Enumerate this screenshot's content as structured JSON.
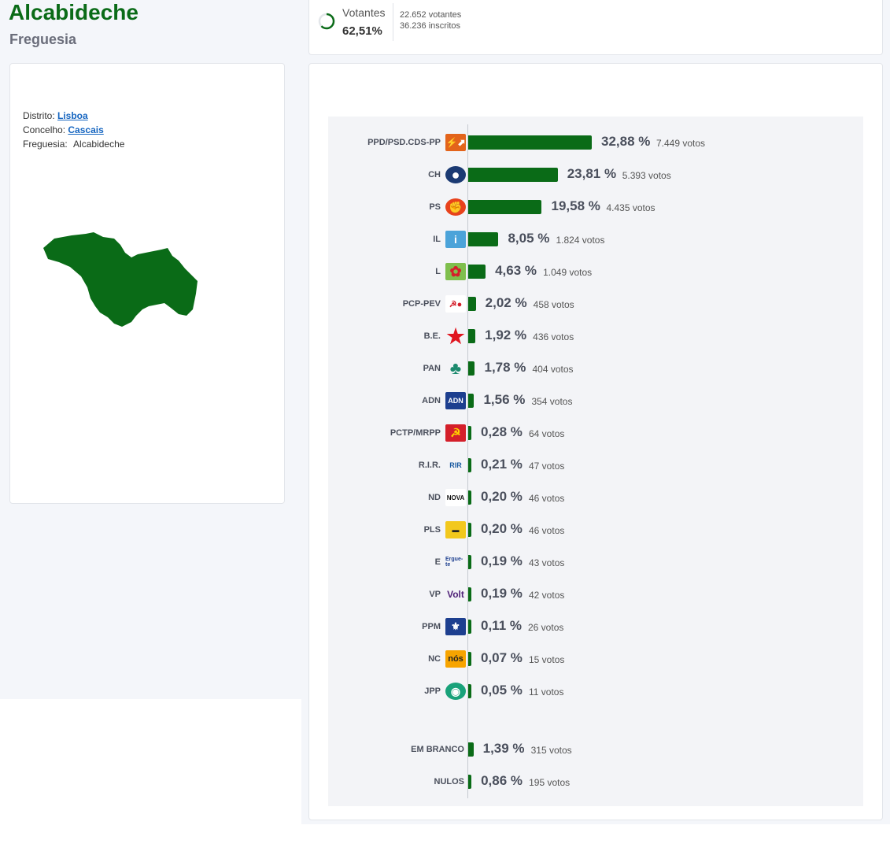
{
  "header": {
    "title": "Alcabideche",
    "subtitle": "Freguesia"
  },
  "turnout": {
    "label": "Votantes",
    "percent": "62,51%",
    "percent_value": 62.51,
    "voters": "22.652 votantes",
    "registered": "36.236 inscritos"
  },
  "info": {
    "district_label": "Distrito:",
    "district": "Lisboa",
    "council_label": "Concelho:",
    "council": "Cascais",
    "parish_label": "Freguesia:",
    "parish": "Alcabideche"
  },
  "colors": {
    "bar": "#0a6b17",
    "map": "#0a6b17",
    "title": "#0a6b17"
  },
  "chart_data": {
    "type": "bar",
    "orientation": "horizontal",
    "series": [
      {
        "party": "PPD/PSD.CDS-PP",
        "pct": 32.88,
        "pct_label": "32,88 %",
        "votes": 7449,
        "votes_label": "7.449 votos",
        "logo": "psd-cds-logo"
      },
      {
        "party": "CH",
        "pct": 23.81,
        "pct_label": "23,81 %",
        "votes": 5393,
        "votes_label": "5.393 votos",
        "logo": "chega-logo"
      },
      {
        "party": "PS",
        "pct": 19.58,
        "pct_label": "19,58 %",
        "votes": 4435,
        "votes_label": "4.435 votos",
        "logo": "ps-logo"
      },
      {
        "party": "IL",
        "pct": 8.05,
        "pct_label": "8,05 %",
        "votes": 1824,
        "votes_label": "1.824 votos",
        "logo": "il-logo"
      },
      {
        "party": "L",
        "pct": 4.63,
        "pct_label": "4,63 %",
        "votes": 1049,
        "votes_label": "1.049 votos",
        "logo": "livre-logo"
      },
      {
        "party": "PCP-PEV",
        "pct": 2.02,
        "pct_label": "2,02 %",
        "votes": 458,
        "votes_label": "458 votos",
        "logo": "cdu-logo"
      },
      {
        "party": "B.E.",
        "pct": 1.92,
        "pct_label": "1,92 %",
        "votes": 436,
        "votes_label": "436 votos",
        "logo": "be-star-logo"
      },
      {
        "party": "PAN",
        "pct": 1.78,
        "pct_label": "1,78 %",
        "votes": 404,
        "votes_label": "404 votos",
        "logo": "pan-tree-logo"
      },
      {
        "party": "ADN",
        "pct": 1.56,
        "pct_label": "1,56 %",
        "votes": 354,
        "votes_label": "354 votos",
        "logo": "adn-logo"
      },
      {
        "party": "PCTP/MRPP",
        "pct": 0.28,
        "pct_label": "0,28 %",
        "votes": 64,
        "votes_label": "64 votos",
        "logo": "pctp-logo"
      },
      {
        "party": "R.I.R.",
        "pct": 0.21,
        "pct_label": "0,21 %",
        "votes": 47,
        "votes_label": "47 votos",
        "logo": "rir-logo"
      },
      {
        "party": "ND",
        "pct": 0.2,
        "pct_label": "0,20 %",
        "votes": 46,
        "votes_label": "46 votos",
        "logo": "nd-logo"
      },
      {
        "party": "PLS",
        "pct": 0.2,
        "pct_label": "0,20 %",
        "votes": 46,
        "votes_label": "46 votos",
        "logo": "pls-logo"
      },
      {
        "party": "E",
        "pct": 0.19,
        "pct_label": "0,19 %",
        "votes": 43,
        "votes_label": "43 votos",
        "logo": "ergue-te-logo"
      },
      {
        "party": "VP",
        "pct": 0.19,
        "pct_label": "0,19 %",
        "votes": 42,
        "votes_label": "42 votos",
        "logo": "volt-logo"
      },
      {
        "party": "PPM",
        "pct": 0.11,
        "pct_label": "0,11 %",
        "votes": 26,
        "votes_label": "26 votos",
        "logo": "ppm-logo"
      },
      {
        "party": "NC",
        "pct": 0.07,
        "pct_label": "0,07 %",
        "votes": 15,
        "votes_label": "15 votos",
        "logo": "nos-logo"
      },
      {
        "party": "JPP",
        "pct": 0.05,
        "pct_label": "0,05 %",
        "votes": 11,
        "votes_label": "11 votos",
        "logo": "jpp-logo"
      }
    ],
    "extra": [
      {
        "party": "EM BRANCO",
        "pct": 1.39,
        "pct_label": "1,39 %",
        "votes": 315,
        "votes_label": "315 votos"
      },
      {
        "party": "NULOS",
        "pct": 0.86,
        "pct_label": "0,86 %",
        "votes": 195,
        "votes_label": "195 votos"
      }
    ]
  }
}
